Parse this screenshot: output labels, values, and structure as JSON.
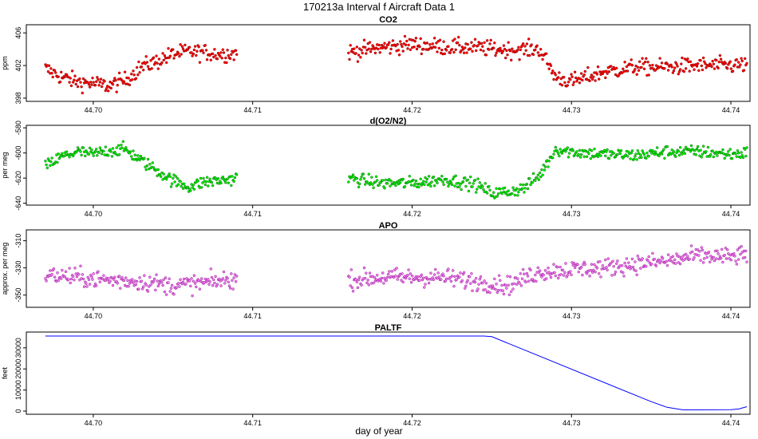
{
  "figure": {
    "title": "170213a   Interval f Aircraft Data 1",
    "xlabel": "day of year"
  },
  "chart_data": [
    {
      "type": "scatter",
      "title": "CO2",
      "ylabel": "ppm",
      "xlim": [
        44.6958,
        44.7412
      ],
      "ylim": [
        397.6,
        407.0
      ],
      "xticks": [
        44.7,
        44.71,
        44.72,
        44.73,
        44.74
      ],
      "xtick_labels": [
        "44.70",
        "44.71",
        "44.72",
        "44.73",
        "44.74"
      ],
      "yticks": [
        398,
        402,
        406
      ],
      "ytick_labels": [
        "398",
        "402",
        "406"
      ],
      "gaps": [
        [
          44.709,
          44.716
        ]
      ],
      "series": [
        {
          "name": "CO2",
          "color": "#ff0000",
          "edge_color": "#800000",
          "x": [
            44.697,
            44.698,
            44.699,
            44.7,
            44.701,
            44.702,
            44.703,
            44.704,
            44.705,
            44.706,
            44.707,
            44.708,
            44.709,
            44.716,
            44.718,
            44.72,
            44.722,
            44.724,
            44.726,
            44.728,
            44.729,
            44.73,
            44.732,
            44.734,
            44.736,
            44.738,
            44.74,
            44.741
          ],
          "values": [
            401.6,
            400.6,
            400.0,
            399.8,
            399.5,
            400.2,
            401.8,
            402.5,
            403.4,
            403.7,
            403.6,
            403.4,
            403.5,
            403.6,
            404.2,
            404.6,
            404.3,
            404.2,
            403.9,
            404.0,
            400.6,
            400.0,
            401.2,
            401.8,
            401.8,
            402.0,
            402.0,
            402.1
          ],
          "noise": 0.9
        }
      ]
    },
    {
      "type": "scatter",
      "title": "d(O2/N2)",
      "ylabel": "per meg",
      "xlim": [
        44.6958,
        44.7412
      ],
      "ylim": [
        -641.5,
        -578.0
      ],
      "xticks": [
        44.7,
        44.71,
        44.72,
        44.73,
        44.74
      ],
      "xtick_labels": [
        "44.70",
        "44.71",
        "44.72",
        "44.73",
        "44.74"
      ],
      "yticks": [
        -640,
        -620,
        -600,
        -580
      ],
      "ytick_labels": [
        "-640",
        "-620",
        "-600",
        "-580"
      ],
      "gaps": [
        [
          44.709,
          44.716
        ]
      ],
      "series": [
        {
          "name": "d(O2/N2)",
          "color": "#00ee00",
          "edge_color": "#006400",
          "x": [
            44.697,
            44.698,
            44.699,
            44.7,
            44.701,
            44.702,
            44.703,
            44.704,
            44.705,
            44.706,
            44.707,
            44.708,
            44.709,
            44.716,
            44.718,
            44.72,
            44.722,
            44.724,
            44.725,
            44.726,
            44.727,
            44.728,
            44.729,
            44.73,
            44.732,
            44.734,
            44.736,
            44.738,
            44.74,
            44.741
          ],
          "values": [
            -611,
            -603,
            -599,
            -601,
            -598,
            -597,
            -606,
            -614,
            -622,
            -627,
            -623,
            -622,
            -620,
            -620,
            -624,
            -624,
            -621,
            -625,
            -632,
            -631,
            -628,
            -618,
            -597,
            -599,
            -601,
            -602,
            -599,
            -599,
            -601,
            -600
          ],
          "noise": 4.5
        }
      ]
    },
    {
      "type": "scatter",
      "title": "APO",
      "ylabel": "approx. per meg",
      "xlim": [
        44.6958,
        44.7412
      ],
      "ylim": [
        -359.0,
        -302.0
      ],
      "xticks": [
        44.7,
        44.71,
        44.72,
        44.73,
        44.74
      ],
      "xtick_labels": [
        "44.70",
        "44.71",
        "44.72",
        "44.73",
        "44.74"
      ],
      "yticks": [
        -350,
        -330,
        -310
      ],
      "ytick_labels": [
        "-350",
        "-330",
        "-310"
      ],
      "gaps": [
        [
          44.709,
          44.716
        ]
      ],
      "series": [
        {
          "name": "APO",
          "color": "#ee82ee",
          "edge_color": "#8b008b",
          "x": [
            44.697,
            44.699,
            44.701,
            44.703,
            44.705,
            44.707,
            44.709,
            44.716,
            44.718,
            44.72,
            44.722,
            44.724,
            44.726,
            44.728,
            44.73,
            44.732,
            44.734,
            44.736,
            44.738,
            44.74,
            44.741
          ],
          "values": [
            -335,
            -337,
            -339,
            -340,
            -343,
            -341,
            -338,
            -339,
            -337,
            -337,
            -337,
            -340,
            -343,
            -333,
            -331,
            -330,
            -327,
            -325,
            -321,
            -322,
            -320
          ],
          "noise": 6.0
        }
      ]
    },
    {
      "type": "line",
      "title": "PALTF",
      "ylabel": "feet",
      "xlim": [
        44.6958,
        44.7412
      ],
      "ylim": [
        -1500,
        37500
      ],
      "xticks": [
        44.7,
        44.71,
        44.72,
        44.73,
        44.74
      ],
      "xtick_labels": [
        "44.70",
        "44.71",
        "44.72",
        "44.73",
        "44.74"
      ],
      "yticks": [
        0,
        10000,
        20000,
        30000
      ],
      "ytick_labels": [
        "0",
        "10000",
        "20000",
        "30000"
      ],
      "series": [
        {
          "name": "PALTF",
          "color": "#0000ff",
          "x": [
            44.697,
            44.7245,
            44.725,
            44.735,
            44.736,
            44.737,
            44.74,
            44.7405,
            44.741
          ],
          "values": [
            35600,
            35600,
            35300,
            4500,
            1800,
            600,
            700,
            1000,
            2100
          ]
        }
      ]
    }
  ]
}
